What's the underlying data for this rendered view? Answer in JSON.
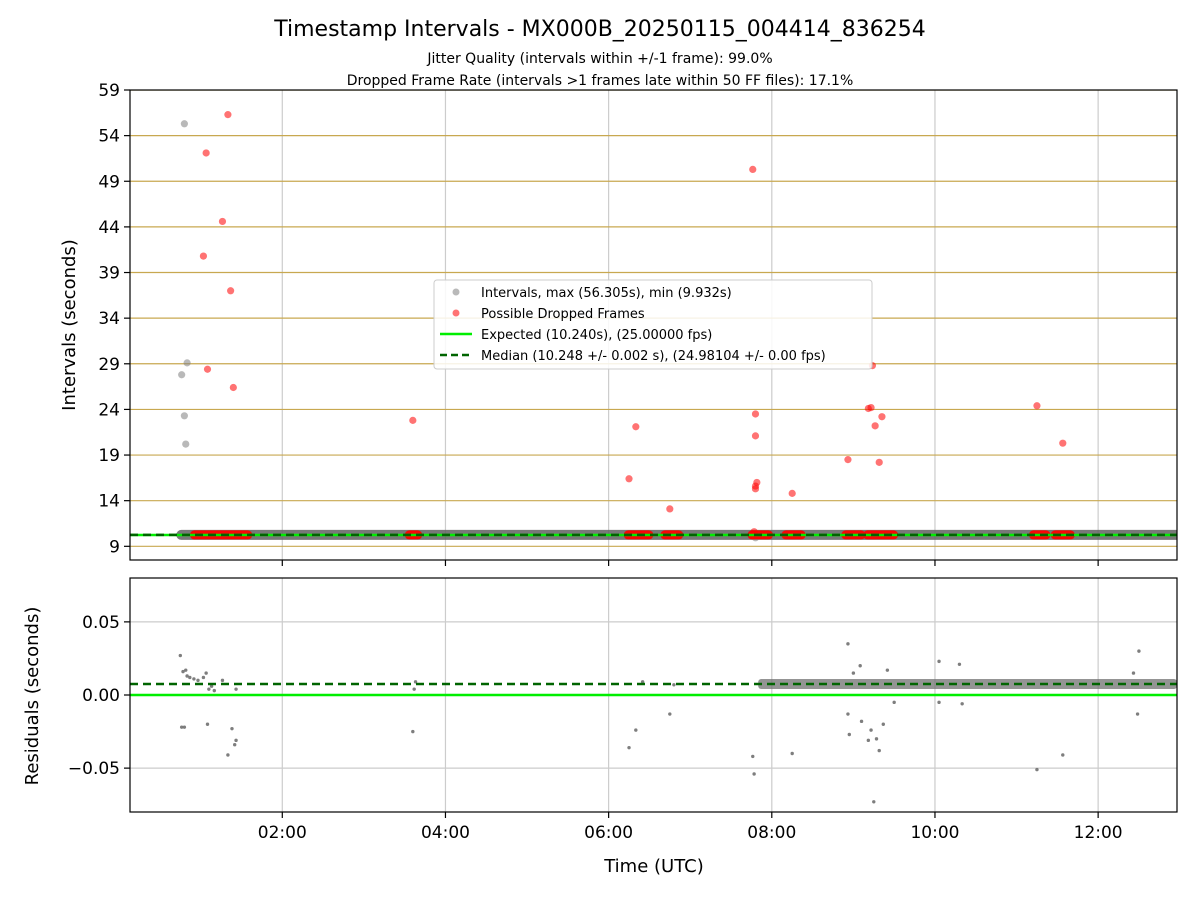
{
  "header": {
    "title": "Timestamp Intervals - MX000B_20250115_004414_836254",
    "subtitle1": "Jitter Quality (intervals within +/-1 frame): 99.0%",
    "subtitle2": "Dropped Frame Rate (intervals >1 frames late within 50 FF files): 17.1%"
  },
  "chart_data": [
    {
      "type": "scatter",
      "xlabel": "",
      "ylabel": "Intervals (seconds)",
      "xlim": [
        "00:08",
        "12:58"
      ],
      "ylim": [
        7.5,
        59
      ],
      "yticks": [
        9,
        14,
        19,
        24,
        29,
        34,
        39,
        44,
        49,
        54,
        59
      ],
      "grid": true,
      "legend_position": "center",
      "legend": [
        "Intervals, max (56.305s), min (9.932s)",
        "Possible Dropped Frames",
        "Expected (10.240s), (25.00000 fps)",
        "Median (10.248 +/- 0.002 s), (24.98104 +/- 0.00 fps)"
      ],
      "colors": {
        "intervals": "#808080",
        "dropped": "#ff0000",
        "expected": "#00ee00",
        "median": "#006400",
        "hgrid": "#c8a850"
      },
      "series": [
        {
          "name": "Intervals, max (56.305s), min (9.932s)",
          "style": "points",
          "points": [
            [
              "00:46",
              27.8
            ],
            [
              "00:48",
              23.3
            ],
            [
              "00:48",
              55.3
            ],
            [
              "00:49",
              20.2
            ],
            [
              "00:50",
              29.1
            ],
            [
              "07:48",
              9.93
            ]
          ],
          "dense_band": {
            "y": 10.25,
            "ranges": [
              [
                "00:45",
                "12:58"
              ]
            ]
          }
        },
        {
          "name": "Possible Dropped Frames",
          "style": "points",
          "points": [
            [
              "01:02",
              40.8
            ],
            [
              "01:04",
              52.1
            ],
            [
              "01:05",
              28.4
            ],
            [
              "01:16",
              44.6
            ],
            [
              "01:20",
              56.3
            ],
            [
              "01:22",
              37.0
            ],
            [
              "01:24",
              26.4
            ],
            [
              "03:36",
              22.8
            ],
            [
              "06:15",
              16.4
            ],
            [
              "06:20",
              22.1
            ],
            [
              "06:45",
              13.1
            ],
            [
              "07:46",
              50.3
            ],
            [
              "07:48",
              15.3
            ],
            [
              "07:48",
              15.6
            ],
            [
              "07:49",
              16.0
            ],
            [
              "07:48",
              21.1
            ],
            [
              "07:48",
              23.5
            ],
            [
              "07:47",
              10.6
            ],
            [
              "08:15",
              14.8
            ],
            [
              "08:56",
              18.5
            ],
            [
              "09:11",
              24.1
            ],
            [
              "09:13",
              24.2
            ],
            [
              "09:14",
              28.8
            ],
            [
              "09:16",
              22.2
            ],
            [
              "09:19",
              18.2
            ],
            [
              "09:21",
              23.2
            ],
            [
              "11:15",
              24.4
            ],
            [
              "11:34",
              20.3
            ]
          ],
          "dense_ranges": {
            "y": 10.25,
            "ranges": [
              [
                "00:55",
                "01:35"
              ],
              [
                "03:33",
                "03:40"
              ],
              [
                "06:14",
                "06:30"
              ],
              [
                "06:41",
                "06:52"
              ],
              [
                "07:45",
                "07:58"
              ],
              [
                "08:10",
                "08:22"
              ],
              [
                "08:54",
                "09:06"
              ],
              [
                "09:10",
                "09:30"
              ],
              [
                "11:12",
                "11:22"
              ],
              [
                "11:28",
                "11:40"
              ]
            ]
          }
        },
        {
          "name": "Expected (10.240s), (25.00000 fps)",
          "style": "solid-line",
          "y": 10.24
        },
        {
          "name": "Median (10.248 +/- 0.002 s), (24.98104 +/- 0.00 fps)",
          "style": "dashed-line",
          "y": 10.248
        }
      ]
    },
    {
      "type": "scatter",
      "xlabel": "Time (UTC)",
      "ylabel": "Residuals (seconds)",
      "xlim": [
        "00:08",
        "12:58"
      ],
      "ylim": [
        -0.08,
        0.08
      ],
      "yticks": [
        -0.05,
        0.0,
        0.05
      ],
      "ytick_labels": [
        "−0.05",
        "0.00",
        "0.05"
      ],
      "xticks": [
        "02:00",
        "04:00",
        "06:00",
        "08:00",
        "10:00",
        "12:00"
      ],
      "grid": true,
      "colors": {
        "residuals": "#707070",
        "expected": "#00ee00",
        "median": "#006400"
      },
      "series": [
        {
          "name": "",
          "style": "points",
          "points": [
            [
              "00:45",
              0.027
            ],
            [
              "00:46",
              -0.022
            ],
            [
              "00:48",
              -0.022
            ],
            [
              "00:47",
              0.016
            ],
            [
              "00:49",
              0.017
            ],
            [
              "00:50",
              0.013
            ],
            [
              "00:52",
              0.012
            ],
            [
              "00:55",
              0.011
            ],
            [
              "00:58",
              0.01
            ],
            [
              "01:02",
              0.012
            ],
            [
              "01:04",
              0.015
            ],
            [
              "01:05",
              -0.02
            ],
            [
              "01:06",
              0.004
            ],
            [
              "01:08",
              0.006
            ],
            [
              "01:10",
              0.003
            ],
            [
              "01:16",
              0.01
            ],
            [
              "01:20",
              -0.041
            ],
            [
              "01:23",
              -0.023
            ],
            [
              "01:25",
              -0.034
            ],
            [
              "01:26",
              -0.031
            ],
            [
              "01:26",
              0.004
            ],
            [
              "03:36",
              -0.025
            ],
            [
              "03:37",
              0.004
            ],
            [
              "03:38",
              0.009
            ],
            [
              "06:15",
              -0.036
            ],
            [
              "06:20",
              -0.024
            ],
            [
              "06:25",
              0.009
            ],
            [
              "06:45",
              -0.013
            ],
            [
              "06:48",
              0.007
            ],
            [
              "07:46",
              -0.042
            ],
            [
              "07:47",
              -0.054
            ],
            [
              "08:15",
              -0.04
            ],
            [
              "08:56",
              0.035
            ],
            [
              "08:56",
              -0.013
            ],
            [
              "08:57",
              -0.027
            ],
            [
              "09:00",
              0.015
            ],
            [
              "09:05",
              0.02
            ],
            [
              "09:06",
              -0.018
            ],
            [
              "09:11",
              -0.031
            ],
            [
              "09:13",
              -0.024
            ],
            [
              "09:15",
              -0.073
            ],
            [
              "09:17",
              -0.03
            ],
            [
              "09:19",
              -0.038
            ],
            [
              "09:22",
              -0.02
            ],
            [
              "09:25",
              0.017
            ],
            [
              "09:30",
              -0.005
            ],
            [
              "10:03",
              0.023
            ],
            [
              "10:03",
              -0.005
            ],
            [
              "10:18",
              0.021
            ],
            [
              "10:20",
              -0.006
            ],
            [
              "11:15",
              -0.051
            ],
            [
              "11:34",
              -0.041
            ],
            [
              "12:26",
              0.015
            ],
            [
              "12:30",
              0.03
            ],
            [
              "12:29",
              -0.013
            ]
          ],
          "dense_band": {
            "y": 0.0075,
            "ranges": [
              [
                "07:50",
                "12:58"
              ]
            ]
          }
        },
        {
          "name": "",
          "style": "solid-line",
          "y": 0.0
        },
        {
          "name": "",
          "style": "dashed-line",
          "y": 0.0075
        }
      ]
    }
  ]
}
